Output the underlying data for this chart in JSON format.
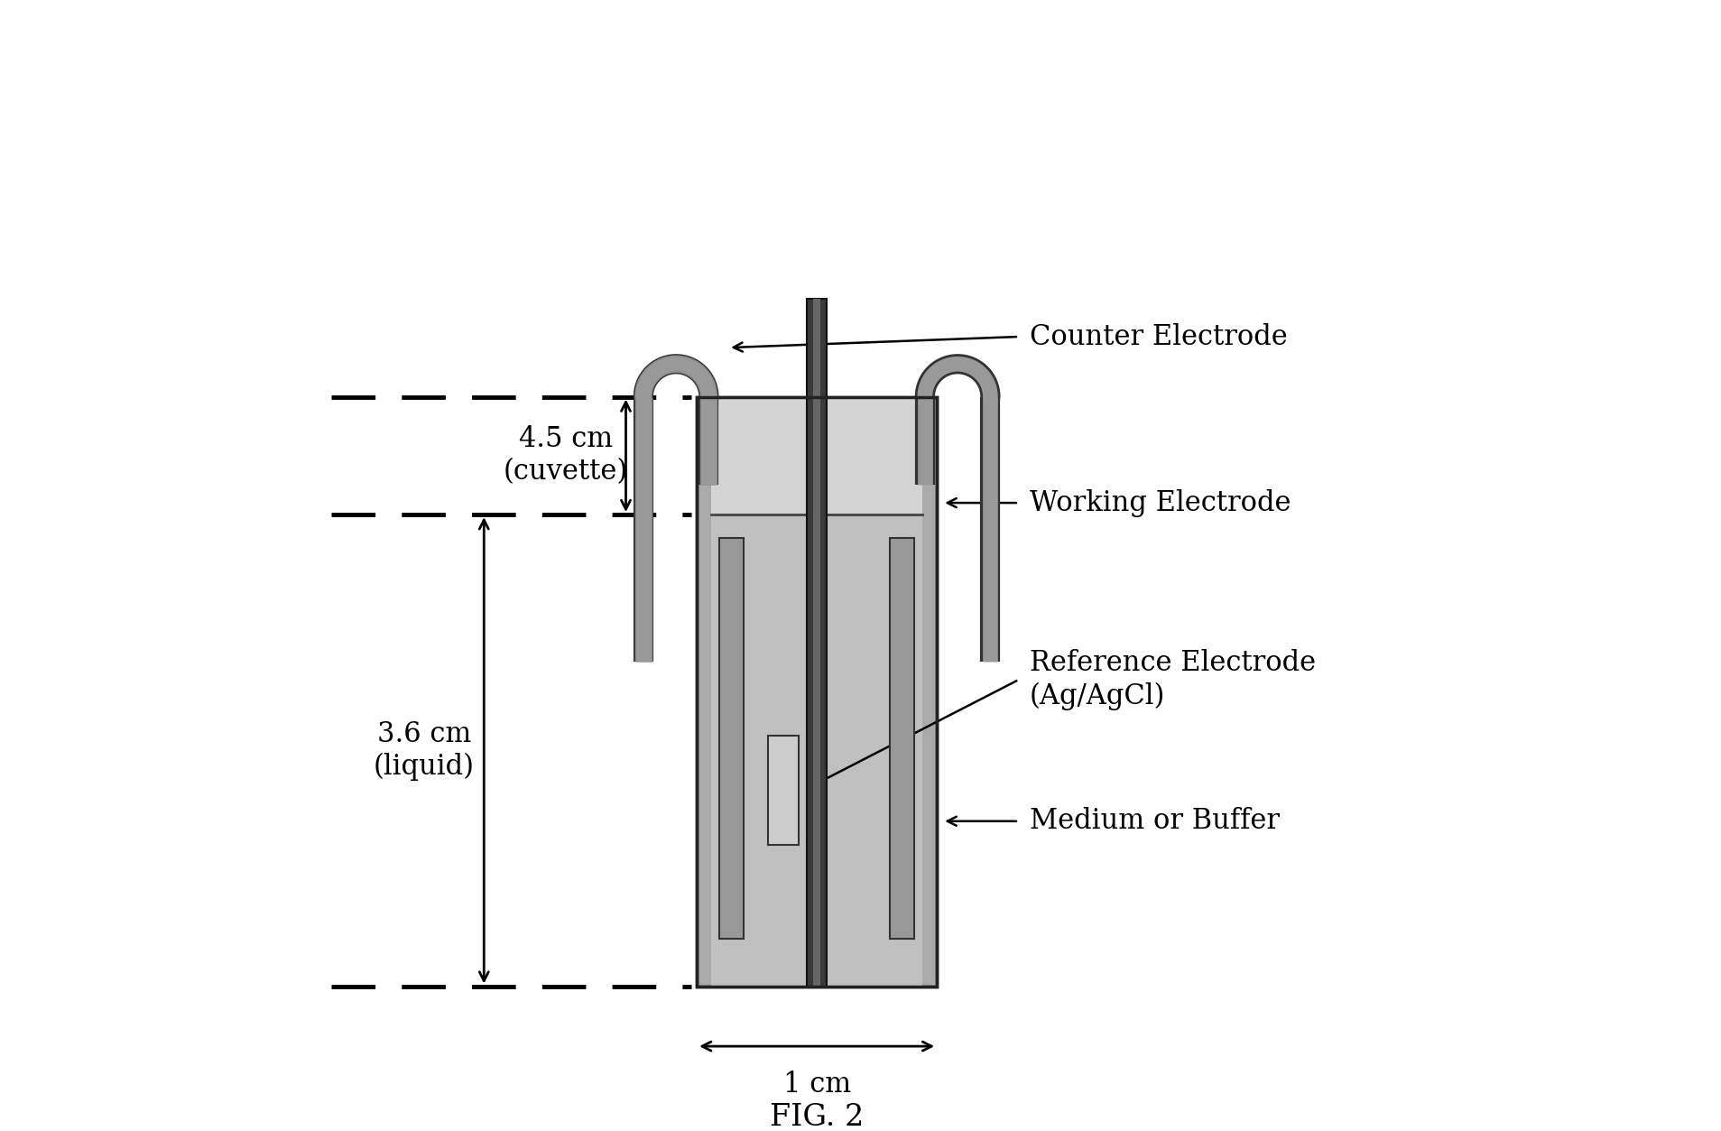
{
  "fig_width": 19.07,
  "fig_height": 12.53,
  "bg_color": "#ffffff",
  "colors": {
    "cuvette_wall": "#888888",
    "air_fill": "#d8d8d8",
    "liquid_fill": "#b8b8b8",
    "working_electrode_dark": "#2a2a2a",
    "working_electrode_mid": "#555555",
    "counter_electrode": "#888888",
    "black": "#000000",
    "text": "#000000"
  },
  "labels": {
    "counter_electrode": "Counter Electrode",
    "working_electrode": "Working Electrode",
    "reference_electrode": "Reference Electrode\n(Ag/AgCl)",
    "medium_buffer": "Medium or Buffer",
    "dim_cuvette": "4.5 cm\n(cuvette)",
    "dim_liquid": "3.6 cm\n(liquid)",
    "dim_width": "1 cm",
    "fig_label": "FIG. 2"
  }
}
